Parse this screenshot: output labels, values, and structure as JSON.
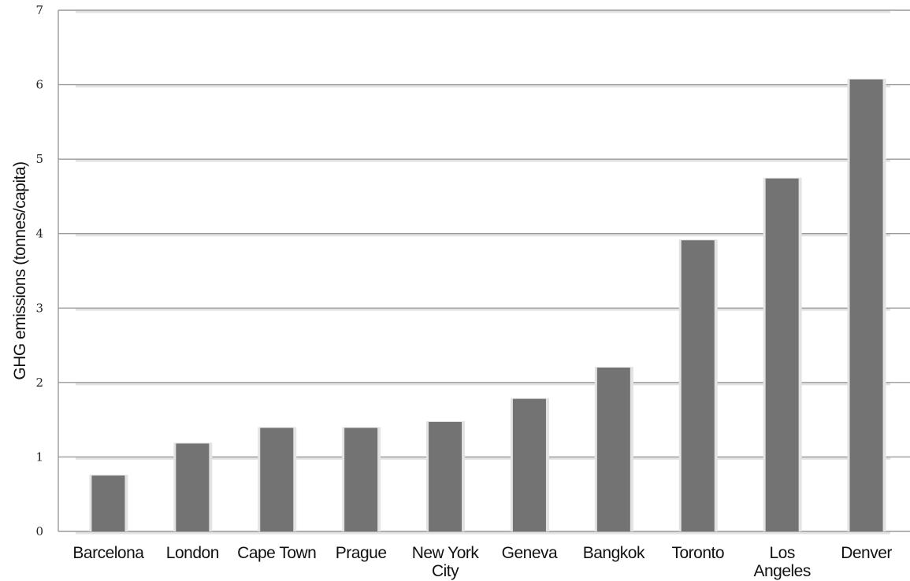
{
  "chart_data": {
    "type": "bar",
    "ylabel": "GHG emissions (tonnes/capita)",
    "xlabel": "",
    "ylim": [
      0,
      7
    ],
    "yticks": [
      0,
      1,
      2,
      3,
      4,
      5,
      6,
      7
    ],
    "grid": true,
    "categories": [
      [
        "Barcelona"
      ],
      [
        "London"
      ],
      [
        "Cape Town"
      ],
      [
        "Prague"
      ],
      [
        "New York",
        "City"
      ],
      [
        "Geneva"
      ],
      [
        "Bangkok"
      ],
      [
        "Toronto"
      ],
      [
        "Los",
        "Angeles"
      ],
      [
        "Denver"
      ]
    ],
    "values": [
      0.75,
      1.18,
      1.39,
      1.39,
      1.47,
      1.78,
      2.2,
      3.91,
      4.74,
      6.07
    ],
    "colors": {
      "bar": "#737373",
      "grid": "#9a9a9a",
      "bar_shadow": "#e3e3e3"
    }
  }
}
